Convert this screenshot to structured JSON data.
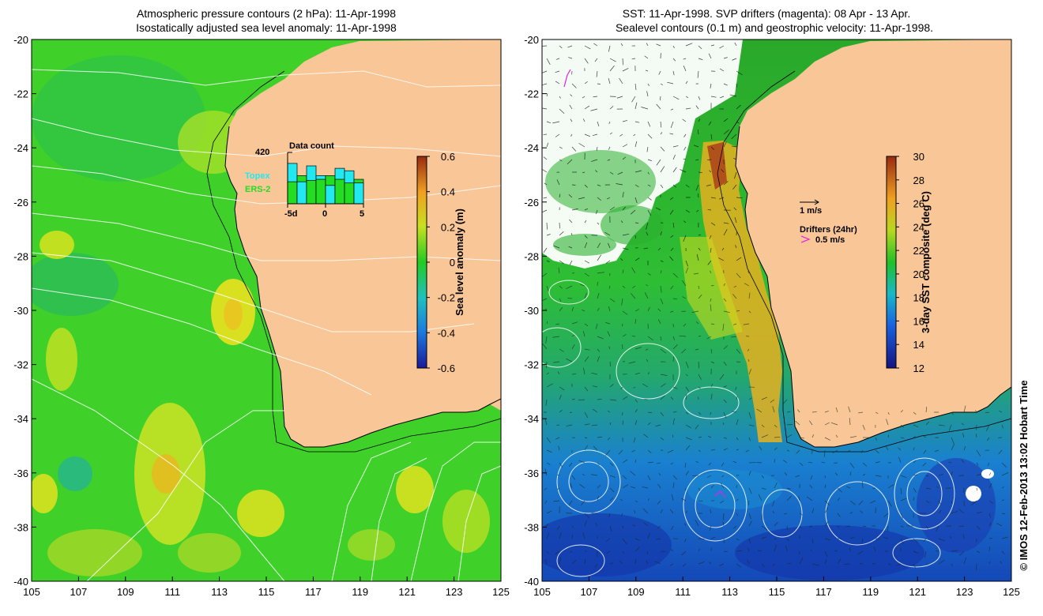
{
  "left_panel": {
    "title_line1": "Atmospheric pressure contours (2 hPa): 11-Apr-1998",
    "title_line2": "Isostatically adjusted sea level anomaly: 11-Apr-1998",
    "y_ticks": [
      "-20",
      "-22",
      "-24",
      "-26",
      "-28",
      "-30",
      "-32",
      "-34",
      "-36",
      "-38",
      "-40"
    ],
    "x_ticks": [
      "105",
      "107",
      "109",
      "111",
      "113",
      "115",
      "117",
      "119",
      "121",
      "123",
      "125"
    ],
    "colorbar": {
      "label": "Sea level anomaly (m)",
      "ticks": [
        "0.6",
        "0.4",
        "0.2",
        "0",
        "-0.2",
        "-0.4",
        "-0.6"
      ]
    },
    "data_count": {
      "title": "Data count",
      "max_label": "420",
      "x_labels": [
        "-5d",
        "0",
        "5"
      ],
      "series": [
        {
          "name": "Topex",
          "color": "#22e8f0",
          "values": [
            330,
            180,
            310,
            230,
            150,
            290,
            270,
            170
          ]
        },
        {
          "name": "ERS-2",
          "color": "#22dd22",
          "values": [
            180,
            230,
            190,
            200,
            230,
            200,
            170,
            200
          ]
        }
      ]
    }
  },
  "right_panel": {
    "title_line1": "SST: 11-Apr-1998. SVP drifters (magenta): 08 Apr - 13 Apr.",
    "title_line2": "Sealevel contours (0.1 m) and geostrophic velocity: 11-Apr-1998.",
    "y_ticks": [
      "-20",
      "-22",
      "-24",
      "-26",
      "-28",
      "-30",
      "-32",
      "-34",
      "-36",
      "-38",
      "-40"
    ],
    "x_ticks": [
      "105",
      "107",
      "109",
      "111",
      "113",
      "115",
      "117",
      "119",
      "121",
      "123",
      "125"
    ],
    "colorbar": {
      "label": "3-day SST composite (deg C)",
      "ticks": [
        "30",
        "28",
        "26",
        "24",
        "22",
        "20",
        "18",
        "16",
        "14",
        "12"
      ]
    },
    "velocity_scale": "1 m/s",
    "drifters_label": "Drifters (24hr)",
    "drifters_scale": "0.5 m/s"
  },
  "credit": "© IMOS 12-Feb-2013 13:02 Hobart Time",
  "colors": {
    "land": "#f9c697",
    "ocean_base_left": "#3fd02a",
    "sst_mid": "#1fae2f",
    "sst_cold": "#1060d0"
  }
}
